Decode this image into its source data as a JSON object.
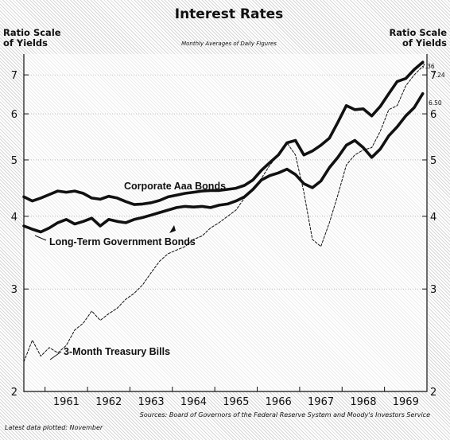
{
  "chart_data": {
    "type": "line",
    "title": "Interest Rates",
    "subtitle": "Monthly Averages of Daily Figures",
    "ylabel_left": "Ratio Scale of Yields",
    "ylabel_right": "Ratio Scale of Yields",
    "y_scale": "log",
    "ylim": [
      2,
      7.6
    ],
    "yticks": [
      2,
      3,
      4,
      5,
      6,
      7
    ],
    "xlim": [
      1960.5,
      1970.0
    ],
    "xticks": [
      {
        "label": "1961",
        "value": 1961.5
      },
      {
        "label": "1962",
        "value": 1962.5
      },
      {
        "label": "1963",
        "value": 1963.5
      },
      {
        "label": "1964",
        "value": 1964.5
      },
      {
        "label": "1965",
        "value": 1965.5
      },
      {
        "label": "1966",
        "value": 1966.5
      },
      {
        "label": "1967",
        "value": 1967.5
      },
      {
        "label": "1968",
        "value": 1968.5
      },
      {
        "label": "1969",
        "value": 1969.5
      }
    ],
    "grid": "horizontal dotted",
    "series": [
      {
        "name": "Corporate Aaa Bonds",
        "style": "bold",
        "end_label": "7.36",
        "x": [
          1960.5,
          1960.7,
          1960.9,
          1961.1,
          1961.3,
          1961.5,
          1961.7,
          1961.9,
          1962.1,
          1962.3,
          1962.5,
          1962.7,
          1962.9,
          1963.1,
          1963.3,
          1963.5,
          1963.7,
          1963.9,
          1964.1,
          1964.3,
          1964.5,
          1964.7,
          1964.9,
          1965.1,
          1965.3,
          1965.5,
          1965.7,
          1965.9,
          1966.1,
          1966.3,
          1966.5,
          1966.7,
          1966.9,
          1967.1,
          1967.3,
          1967.5,
          1967.7,
          1967.9,
          1968.1,
          1968.3,
          1968.5,
          1968.7,
          1968.9,
          1969.1,
          1969.3,
          1969.5,
          1969.7,
          1969.9
        ],
        "y": [
          4.32,
          4.25,
          4.3,
          4.36,
          4.42,
          4.4,
          4.42,
          4.38,
          4.3,
          4.28,
          4.33,
          4.3,
          4.24,
          4.19,
          4.2,
          4.22,
          4.26,
          4.32,
          4.35,
          4.38,
          4.4,
          4.42,
          4.43,
          4.43,
          4.45,
          4.47,
          4.52,
          4.62,
          4.8,
          4.95,
          5.1,
          5.35,
          5.4,
          5.1,
          5.18,
          5.3,
          5.45,
          5.8,
          6.2,
          6.1,
          6.12,
          5.95,
          6.18,
          6.5,
          6.82,
          6.9,
          7.15,
          7.36
        ]
      },
      {
        "name": "Long-Term Government Bonds",
        "style": "bold",
        "end_label": "6.50",
        "x": [
          1960.5,
          1960.7,
          1960.9,
          1961.1,
          1961.3,
          1961.5,
          1961.7,
          1961.9,
          1962.1,
          1962.3,
          1962.5,
          1962.7,
          1962.9,
          1963.1,
          1963.3,
          1963.5,
          1963.7,
          1963.9,
          1964.1,
          1964.3,
          1964.5,
          1964.7,
          1964.9,
          1965.1,
          1965.3,
          1965.5,
          1965.7,
          1965.9,
          1966.1,
          1966.3,
          1966.5,
          1966.7,
          1966.9,
          1967.1,
          1967.3,
          1967.5,
          1967.7,
          1967.9,
          1968.1,
          1968.3,
          1968.5,
          1968.7,
          1968.9,
          1969.1,
          1969.3,
          1969.5,
          1969.7,
          1969.9
        ],
        "y": [
          3.85,
          3.8,
          3.76,
          3.82,
          3.9,
          3.95,
          3.88,
          3.92,
          3.97,
          3.85,
          3.95,
          3.92,
          3.9,
          3.95,
          3.98,
          4.02,
          4.06,
          4.1,
          4.14,
          4.16,
          4.15,
          4.16,
          4.14,
          4.18,
          4.2,
          4.25,
          4.32,
          4.45,
          4.62,
          4.7,
          4.75,
          4.82,
          4.72,
          4.55,
          4.48,
          4.6,
          4.85,
          5.05,
          5.3,
          5.4,
          5.25,
          5.05,
          5.22,
          5.5,
          5.7,
          5.95,
          6.15,
          6.5
        ]
      },
      {
        "name": "3-Month Treasury Bills",
        "style": "dashed",
        "end_label": "7.24",
        "x": [
          1960.5,
          1960.7,
          1960.9,
          1961.1,
          1961.3,
          1961.5,
          1961.7,
          1961.9,
          1962.1,
          1962.3,
          1962.5,
          1962.7,
          1962.9,
          1963.1,
          1963.3,
          1963.5,
          1963.7,
          1963.9,
          1964.1,
          1964.3,
          1964.5,
          1964.7,
          1964.9,
          1965.1,
          1965.3,
          1965.5,
          1965.7,
          1965.9,
          1966.1,
          1966.3,
          1966.5,
          1966.7,
          1966.9,
          1967.1,
          1967.3,
          1967.5,
          1967.7,
          1967.9,
          1968.1,
          1968.3,
          1968.5,
          1968.7,
          1968.9,
          1969.1,
          1969.3,
          1969.5,
          1969.7,
          1969.9
        ],
        "y": [
          2.25,
          2.45,
          2.3,
          2.38,
          2.33,
          2.4,
          2.55,
          2.62,
          2.75,
          2.65,
          2.72,
          2.78,
          2.88,
          2.95,
          3.05,
          3.2,
          3.35,
          3.45,
          3.5,
          3.55,
          3.65,
          3.7,
          3.82,
          3.9,
          4.0,
          4.1,
          4.3,
          4.45,
          4.65,
          4.9,
          5.1,
          5.35,
          5.1,
          4.4,
          3.65,
          3.55,
          3.9,
          4.35,
          4.9,
          5.1,
          5.2,
          5.25,
          5.6,
          6.1,
          6.2,
          6.7,
          7.0,
          7.24
        ]
      }
    ]
  },
  "labels": {
    "title": "Interest Rates",
    "subtitle": "Monthly Averages of Daily Figures",
    "left_scale_line1": "Ratio Scale",
    "left_scale_line2": "of Yields",
    "right_scale_line1": "Ratio Scale",
    "right_scale_line2": "of Yields",
    "sources": "Sources: Board of Governors of the Federal Reserve System and Moody's Investors Service",
    "latest": "Latest data plotted: November"
  },
  "colors": {
    "line": "#111111",
    "text": "#111111"
  }
}
